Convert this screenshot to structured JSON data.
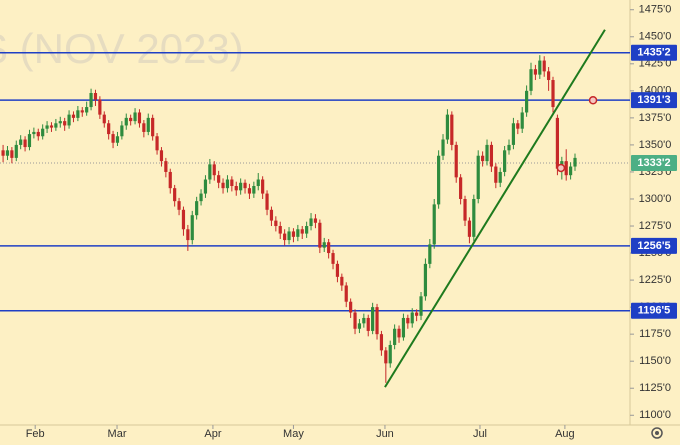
{
  "chart_data": {
    "type": "candlestick",
    "watermark": "S (NOV 2023)",
    "up_color": "#2e8b3e",
    "down_color": "#c62828",
    "xlim": [
      -0.7,
      142.5
    ],
    "ylim": [
      1091,
      1484
    ],
    "xticks": [
      {
        "value": 7.3,
        "label": "Feb"
      },
      {
        "value": 25.9,
        "label": "Mar"
      },
      {
        "value": 47.7,
        "label": "Apr"
      },
      {
        "value": 66,
        "label": "May"
      },
      {
        "value": 86.8,
        "label": "Jun"
      },
      {
        "value": 108.4,
        "label": "Jul"
      },
      {
        "value": 127.7,
        "label": "Aug"
      }
    ],
    "yticks": [
      {
        "value": 1475,
        "label": "1475'0"
      },
      {
        "value": 1450,
        "label": "1450'0"
      },
      {
        "value": 1425,
        "label": "1425'0"
      },
      {
        "value": 1400,
        "label": "1400'0"
      },
      {
        "value": 1375,
        "label": "1375'0"
      },
      {
        "value": 1350,
        "label": "1350'0"
      },
      {
        "value": 1325,
        "label": "1325'0"
      },
      {
        "value": 1300,
        "label": "1300'0"
      },
      {
        "value": 1275,
        "label": "1275'0"
      },
      {
        "value": 1250,
        "label": "1250'0"
      },
      {
        "value": 1225,
        "label": "1225'0"
      },
      {
        "value": 1200,
        "label": "1200'0"
      },
      {
        "value": 1175,
        "label": "1175'0"
      },
      {
        "value": 1150,
        "label": "1150'0"
      },
      {
        "value": 1125,
        "label": "1125'0"
      },
      {
        "value": 1100,
        "label": "1100'0"
      }
    ],
    "levels": [
      {
        "value": 1435.25,
        "label": "1435'2"
      },
      {
        "value": 1391.375,
        "label": "1391'3"
      },
      {
        "value": 1256.625,
        "label": "1256'5"
      },
      {
        "value": 1196.625,
        "label": "1196'5"
      }
    ],
    "level_color": "#1f3fc5",
    "last_price": {
      "value": 1333.25,
      "label": "1333'2",
      "color": "#4caf85"
    },
    "trendline": {
      "color": "#1e7a1e",
      "x": [
        86.8,
        136.8
      ],
      "y": [
        1126,
        1456.5
      ]
    },
    "markers": {
      "color": "#c62828",
      "x": [
        126.8,
        134.1
      ],
      "y": [
        1328.7,
        1391.3
      ]
    },
    "candles": [
      [
        1345,
        1350,
        1334,
        1340
      ],
      [
        1340,
        1349,
        1336,
        1345
      ],
      [
        1345,
        1348,
        1333,
        1338
      ],
      [
        1338,
        1354,
        1335,
        1350
      ],
      [
        1350,
        1359,
        1346,
        1355
      ],
      [
        1355,
        1358,
        1344,
        1348
      ],
      [
        1348,
        1364,
        1345,
        1360
      ],
      [
        1360,
        1366,
        1356,
        1362
      ],
      [
        1362,
        1365,
        1354,
        1358
      ],
      [
        1358,
        1369,
        1355,
        1365
      ],
      [
        1365,
        1372,
        1361,
        1368
      ],
      [
        1368,
        1371,
        1362,
        1366
      ],
      [
        1366,
        1374,
        1363,
        1370
      ],
      [
        1370,
        1376,
        1366,
        1372
      ],
      [
        1372,
        1375,
        1363,
        1368
      ],
      [
        1368,
        1382,
        1365,
        1378
      ],
      [
        1378,
        1381,
        1371,
        1375
      ],
      [
        1375,
        1386,
        1372,
        1382
      ],
      [
        1382,
        1385,
        1376,
        1380
      ],
      [
        1380,
        1390,
        1377,
        1385
      ],
      [
        1385,
        1402,
        1382,
        1398
      ],
      [
        1398,
        1401,
        1386,
        1392
      ],
      [
        1392,
        1395,
        1374,
        1378
      ],
      [
        1378,
        1381,
        1366,
        1370
      ],
      [
        1370,
        1373,
        1355,
        1360
      ],
      [
        1360,
        1363,
        1347,
        1352
      ],
      [
        1352,
        1362,
        1349,
        1358
      ],
      [
        1358,
        1372,
        1355,
        1368
      ],
      [
        1368,
        1379,
        1364,
        1375
      ],
      [
        1375,
        1378,
        1368,
        1372
      ],
      [
        1372,
        1384,
        1369,
        1380
      ],
      [
        1380,
        1383,
        1366,
        1370
      ],
      [
        1370,
        1373,
        1357,
        1362
      ],
      [
        1362,
        1379,
        1359,
        1375
      ],
      [
        1375,
        1378,
        1354,
        1358
      ],
      [
        1358,
        1361,
        1341,
        1345
      ],
      [
        1345,
        1348,
        1330,
        1335
      ],
      [
        1335,
        1338,
        1320,
        1325
      ],
      [
        1325,
        1328,
        1305,
        1310
      ],
      [
        1310,
        1313,
        1293,
        1298
      ],
      [
        1298,
        1301,
        1285,
        1290
      ],
      [
        1290,
        1293,
        1266,
        1272
      ],
      [
        1272,
        1276,
        1252,
        1262
      ],
      [
        1262,
        1289,
        1258,
        1285
      ],
      [
        1285,
        1302,
        1281,
        1298
      ],
      [
        1298,
        1309,
        1294,
        1305
      ],
      [
        1305,
        1322,
        1301,
        1318
      ],
      [
        1318,
        1337,
        1314,
        1332
      ],
      [
        1332,
        1335,
        1317,
        1322
      ],
      [
        1322,
        1326,
        1310,
        1315
      ],
      [
        1315,
        1319,
        1305,
        1310
      ],
      [
        1310,
        1322,
        1306,
        1318
      ],
      [
        1318,
        1321,
        1307,
        1312
      ],
      [
        1312,
        1316,
        1303,
        1308
      ],
      [
        1308,
        1319,
        1304,
        1315
      ],
      [
        1315,
        1318,
        1305,
        1310
      ],
      [
        1310,
        1314,
        1300,
        1305
      ],
      [
        1305,
        1316,
        1301,
        1312
      ],
      [
        1312,
        1324,
        1308,
        1318
      ],
      [
        1318,
        1321,
        1300,
        1305
      ],
      [
        1305,
        1308,
        1285,
        1290
      ],
      [
        1290,
        1293,
        1275,
        1280
      ],
      [
        1280,
        1284,
        1270,
        1275
      ],
      [
        1275,
        1279,
        1263,
        1268
      ],
      [
        1268,
        1272,
        1257,
        1262
      ],
      [
        1262,
        1274,
        1258,
        1270
      ],
      [
        1270,
        1273,
        1260,
        1265
      ],
      [
        1265,
        1276,
        1261,
        1272
      ],
      [
        1272,
        1275,
        1263,
        1268
      ],
      [
        1268,
        1279,
        1264,
        1275
      ],
      [
        1275,
        1287,
        1271,
        1282
      ],
      [
        1282,
        1286,
        1273,
        1278
      ],
      [
        1278,
        1281,
        1250,
        1255
      ],
      [
        1255,
        1264,
        1251,
        1260
      ],
      [
        1260,
        1263,
        1245,
        1250
      ],
      [
        1250,
        1253,
        1235,
        1240
      ],
      [
        1240,
        1243,
        1223,
        1228
      ],
      [
        1228,
        1231,
        1215,
        1220
      ],
      [
        1220,
        1223,
        1200,
        1205
      ],
      [
        1205,
        1208,
        1190,
        1195
      ],
      [
        1195,
        1198,
        1175,
        1180
      ],
      [
        1180,
        1189,
        1176,
        1185
      ],
      [
        1185,
        1194,
        1181,
        1190
      ],
      [
        1190,
        1193,
        1173,
        1178
      ],
      [
        1178,
        1204,
        1175,
        1200
      ],
      [
        1200,
        1203,
        1170,
        1175
      ],
      [
        1175,
        1178,
        1155,
        1160
      ],
      [
        1160,
        1163,
        1130,
        1148
      ],
      [
        1148,
        1169,
        1144,
        1165
      ],
      [
        1165,
        1184,
        1161,
        1180
      ],
      [
        1180,
        1183,
        1167,
        1172
      ],
      [
        1172,
        1194,
        1169,
        1190
      ],
      [
        1190,
        1193,
        1180,
        1185
      ],
      [
        1185,
        1199,
        1181,
        1195
      ],
      [
        1195,
        1198,
        1187,
        1192
      ],
      [
        1192,
        1214,
        1188,
        1210
      ],
      [
        1210,
        1245,
        1206,
        1240
      ],
      [
        1240,
        1263,
        1236,
        1258
      ],
      [
        1258,
        1300,
        1254,
        1295
      ],
      [
        1295,
        1345,
        1291,
        1340
      ],
      [
        1340,
        1360,
        1336,
        1355
      ],
      [
        1355,
        1383,
        1351,
        1378
      ],
      [
        1378,
        1381,
        1345,
        1350
      ],
      [
        1350,
        1353,
        1315,
        1320
      ],
      [
        1320,
        1323,
        1295,
        1300
      ],
      [
        1300,
        1303,
        1275,
        1280
      ],
      [
        1280,
        1283,
        1259,
        1265
      ],
      [
        1265,
        1304,
        1261,
        1300
      ],
      [
        1300,
        1345,
        1296,
        1340
      ],
      [
        1340,
        1344,
        1330,
        1335
      ],
      [
        1335,
        1355,
        1331,
        1350
      ],
      [
        1350,
        1353,
        1325,
        1330
      ],
      [
        1330,
        1333,
        1310,
        1315
      ],
      [
        1315,
        1329,
        1311,
        1325
      ],
      [
        1325,
        1349,
        1321,
        1345
      ],
      [
        1345,
        1355,
        1341,
        1350
      ],
      [
        1350,
        1375,
        1346,
        1370
      ],
      [
        1370,
        1373,
        1360,
        1365
      ],
      [
        1365,
        1385,
        1361,
        1380
      ],
      [
        1380,
        1405,
        1376,
        1400
      ],
      [
        1400,
        1426,
        1396,
        1420
      ],
      [
        1420,
        1424,
        1410,
        1415
      ],
      [
        1415,
        1433,
        1411,
        1428
      ],
      [
        1428,
        1432,
        1413,
        1418
      ],
      [
        1418,
        1422,
        1400,
        1410
      ],
      [
        1410,
        1413,
        1380,
        1385
      ],
      [
        1375,
        1378,
        1322,
        1328
      ],
      [
        1328,
        1339,
        1318,
        1335
      ],
      [
        1335,
        1346,
        1317,
        1322
      ],
      [
        1322,
        1334,
        1318,
        1330
      ],
      [
        1330,
        1342,
        1326,
        1338
      ]
    ]
  }
}
